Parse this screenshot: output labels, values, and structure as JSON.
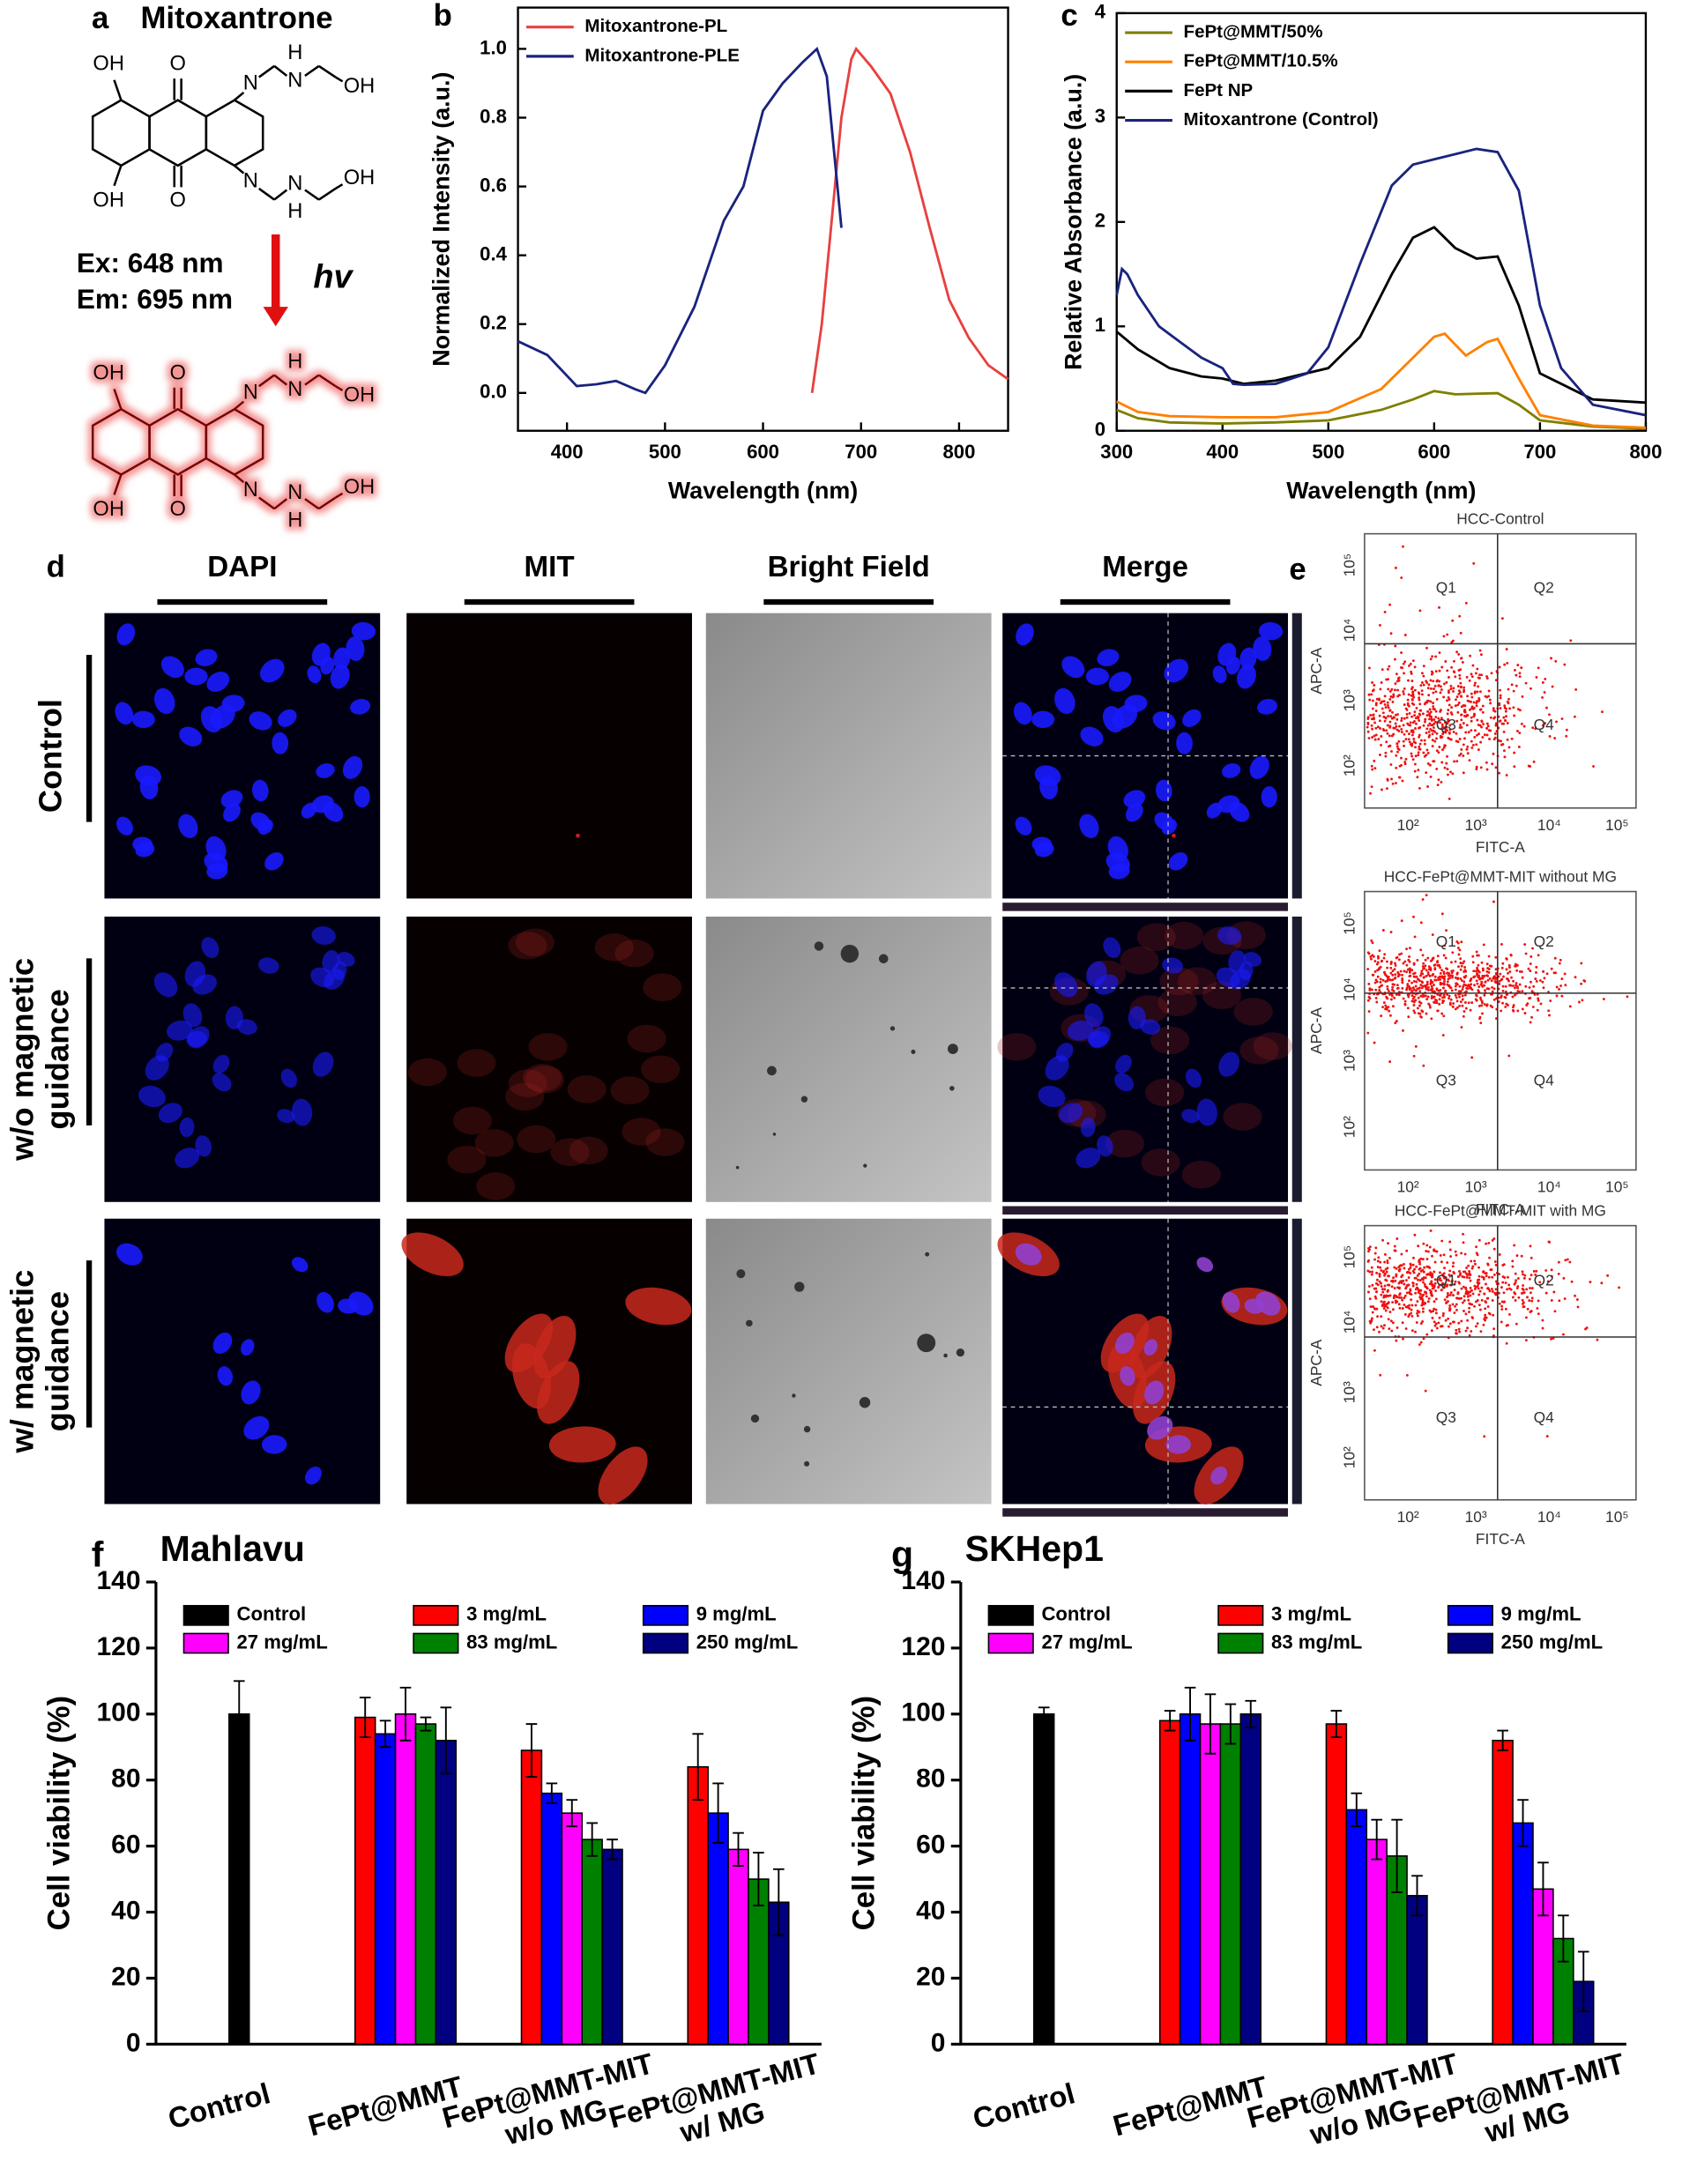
{
  "panel_a": {
    "letter": "a",
    "title": "Mitoxantrone",
    "excitation": "Ex: 648 nm",
    "emission": "Em: 695 nm",
    "light": "hv",
    "atoms": [
      "OH",
      "O",
      "N",
      "H",
      "N",
      "OH"
    ]
  },
  "panel_d": {
    "letter": "d",
    "columns": [
      "DAPI",
      "MIT",
      "Bright Field",
      "Merge"
    ],
    "rows": [
      "Control",
      "w/o magnetic\nguidance",
      "w/ magnetic\nguidance"
    ]
  },
  "panel_e": {
    "letter": "e",
    "titles": [
      "HCC-Control",
      "HCC-FePt@MMT-MIT without MG",
      "HCC-FePt@MMT-MIT with MG"
    ],
    "xlabel": "FITC-A",
    "ylabel": "APC-A",
    "quadrants": [
      "Q1",
      "Q2",
      "Q3",
      "Q4"
    ],
    "ticks": [
      "10²",
      "10³",
      "10⁴",
      "10⁵"
    ]
  },
  "chart_data": [
    {
      "type": "line",
      "panel": "b",
      "xlabel": "Wavelength (nm)",
      "ylabel": "Normalized Intensity (a.u.)",
      "xlim": [
        350,
        850
      ],
      "xticks": [
        400,
        500,
        600,
        700,
        800
      ],
      "ylim": [
        -0.11,
        1.12
      ],
      "yticks": [
        {
          "value": 0,
          "label": "0.0"
        },
        0.2,
        0.4,
        0.6,
        0.8,
        {
          "value": 1,
          "label": "1.0"
        }
      ],
      "legend": "top-left",
      "series": [
        {
          "name": "Mitoxantrone-PL",
          "color": "#e8403f",
          "x": [
            650,
            660,
            670,
            680,
            690,
            695,
            710,
            730,
            750,
            770,
            790,
            810,
            830,
            850
          ],
          "values": [
            0,
            0.2,
            0.5,
            0.8,
            0.97,
            1.0,
            0.95,
            0.87,
            0.7,
            0.48,
            0.27,
            0.16,
            0.08,
            0.04
          ]
        },
        {
          "name": "Mitoxantrone-PLE",
          "color": "#1a237e",
          "x": [
            350,
            380,
            410,
            430,
            450,
            470,
            480,
            500,
            530,
            560,
            580,
            600,
            620,
            640,
            655,
            665,
            680
          ],
          "values": [
            0.15,
            0.11,
            0.02,
            0.025,
            0.035,
            0.01,
            0.0,
            0.08,
            0.25,
            0.5,
            0.6,
            0.82,
            0.9,
            0.96,
            1.0,
            0.92,
            0.48
          ]
        }
      ]
    },
    {
      "type": "line",
      "panel": "c",
      "xlabel": "Wavelength (nm)",
      "ylabel": "Relative Absorbance (a.u.)",
      "xlim": [
        300,
        800
      ],
      "xticks": [
        300,
        400,
        500,
        600,
        700,
        800
      ],
      "ylim": [
        0,
        4
      ],
      "yticks": [
        0,
        1,
        2,
        3,
        4
      ],
      "legend": "top-left",
      "series": [
        {
          "name": "FePt@MMT/50%",
          "color": "#7f7f00",
          "x": [
            300,
            320,
            350,
            400,
            450,
            500,
            550,
            580,
            600,
            620,
            660,
            680,
            700,
            750,
            800
          ],
          "values": [
            0.2,
            0.12,
            0.08,
            0.07,
            0.08,
            0.1,
            0.2,
            0.3,
            0.38,
            0.35,
            0.36,
            0.25,
            0.1,
            0.04,
            0.02
          ]
        },
        {
          "name": "FePt@MMT/10.5%",
          "color": "#ff8000",
          "x": [
            300,
            320,
            350,
            400,
            450,
            500,
            550,
            580,
            600,
            610,
            630,
            650,
            660,
            680,
            700,
            750,
            800
          ],
          "values": [
            0.28,
            0.18,
            0.14,
            0.13,
            0.13,
            0.18,
            0.4,
            0.7,
            0.9,
            0.93,
            0.72,
            0.85,
            0.88,
            0.5,
            0.15,
            0.05,
            0.03
          ]
        },
        {
          "name": "FePt NP",
          "color": "#000000",
          "x": [
            300,
            320,
            350,
            380,
            400,
            420,
            450,
            500,
            530,
            560,
            580,
            600,
            620,
            640,
            660,
            680,
            700,
            750,
            800
          ],
          "values": [
            0.95,
            0.78,
            0.6,
            0.52,
            0.5,
            0.45,
            0.48,
            0.6,
            0.9,
            1.5,
            1.85,
            1.95,
            1.75,
            1.65,
            1.67,
            1.2,
            0.55,
            0.3,
            0.27
          ]
        },
        {
          "name": "Mitoxantrone (Control)",
          "color": "#1a237e",
          "x": [
            300,
            305,
            310,
            320,
            340,
            360,
            380,
            400,
            410,
            420,
            450,
            480,
            500,
            530,
            560,
            580,
            600,
            620,
            640,
            660,
            680,
            700,
            720,
            750,
            800
          ],
          "values": [
            1.3,
            1.55,
            1.5,
            1.3,
            1.0,
            0.85,
            0.7,
            0.6,
            0.45,
            0.44,
            0.45,
            0.55,
            0.8,
            1.6,
            2.35,
            2.55,
            2.6,
            2.65,
            2.7,
            2.67,
            2.3,
            1.2,
            0.6,
            0.25,
            0.15
          ]
        }
      ]
    },
    {
      "type": "bar",
      "panel": "f",
      "title": "Mahlavu",
      "ylabel": "Cell viability (%)",
      "categories": [
        "Control",
        "FePt@MMT",
        "FePt@MMT-MIT\nw/o MG",
        "FePt@MMT-MIT\nw/ MG"
      ],
      "ylim": [
        0,
        140
      ],
      "yticks": [
        0,
        20,
        40,
        60,
        80,
        100,
        120,
        140
      ],
      "legend": "top",
      "series": [
        {
          "name": "Control",
          "color": "#000000",
          "values": [
            100,
            null,
            null,
            null
          ],
          "errors": [
            10,
            null,
            null,
            null
          ]
        },
        {
          "name": "3 mg/mL",
          "color": "#ff0000",
          "values": [
            null,
            99,
            89,
            84
          ],
          "errors": [
            null,
            6,
            8,
            10
          ]
        },
        {
          "name": "9 mg/mL",
          "color": "#0000ff",
          "values": [
            null,
            94,
            76,
            70
          ],
          "errors": [
            null,
            4,
            3,
            9
          ]
        },
        {
          "name": "27 mg/mL",
          "color": "#ff00ff",
          "values": [
            null,
            100,
            70,
            59
          ],
          "errors": [
            null,
            8,
            4,
            5
          ]
        },
        {
          "name": "83 mg/mL",
          "color": "#008000",
          "values": [
            null,
            97,
            62,
            50
          ],
          "errors": [
            null,
            2,
            5,
            8
          ]
        },
        {
          "name": "250 mg/mL",
          "color": "#000080",
          "values": [
            null,
            92,
            59,
            43
          ],
          "errors": [
            null,
            10,
            3,
            10
          ]
        }
      ]
    },
    {
      "type": "bar",
      "panel": "g",
      "title": "SKHep1",
      "ylabel": "Cell viability (%)",
      "categories": [
        "Control",
        "FePt@MMT",
        "FePt@MMT-MIT\nw/o MG",
        "FePt@MMT-MIT\nw/ MG"
      ],
      "ylim": [
        0,
        140
      ],
      "yticks": [
        0,
        20,
        40,
        60,
        80,
        100,
        120,
        140
      ],
      "legend": "top",
      "series": [
        {
          "name": "Control",
          "color": "#000000",
          "values": [
            100,
            null,
            null,
            null
          ],
          "errors": [
            2,
            null,
            null,
            null
          ]
        },
        {
          "name": "3 mg/mL",
          "color": "#ff0000",
          "values": [
            null,
            98,
            97,
            92
          ],
          "errors": [
            null,
            3,
            4,
            3
          ]
        },
        {
          "name": "9 mg/mL",
          "color": "#0000ff",
          "values": [
            null,
            100,
            71,
            67
          ],
          "errors": [
            null,
            8,
            5,
            7
          ]
        },
        {
          "name": "27 mg/mL",
          "color": "#ff00ff",
          "values": [
            null,
            97,
            62,
            47
          ],
          "errors": [
            null,
            9,
            6,
            8
          ]
        },
        {
          "name": "83 mg/mL",
          "color": "#008000",
          "values": [
            null,
            97,
            57,
            32
          ],
          "errors": [
            null,
            6,
            11,
            7
          ]
        },
        {
          "name": "250 mg/mL",
          "color": "#000080",
          "values": [
            null,
            100,
            45,
            19
          ],
          "errors": [
            null,
            4,
            6,
            9
          ]
        }
      ]
    }
  ]
}
